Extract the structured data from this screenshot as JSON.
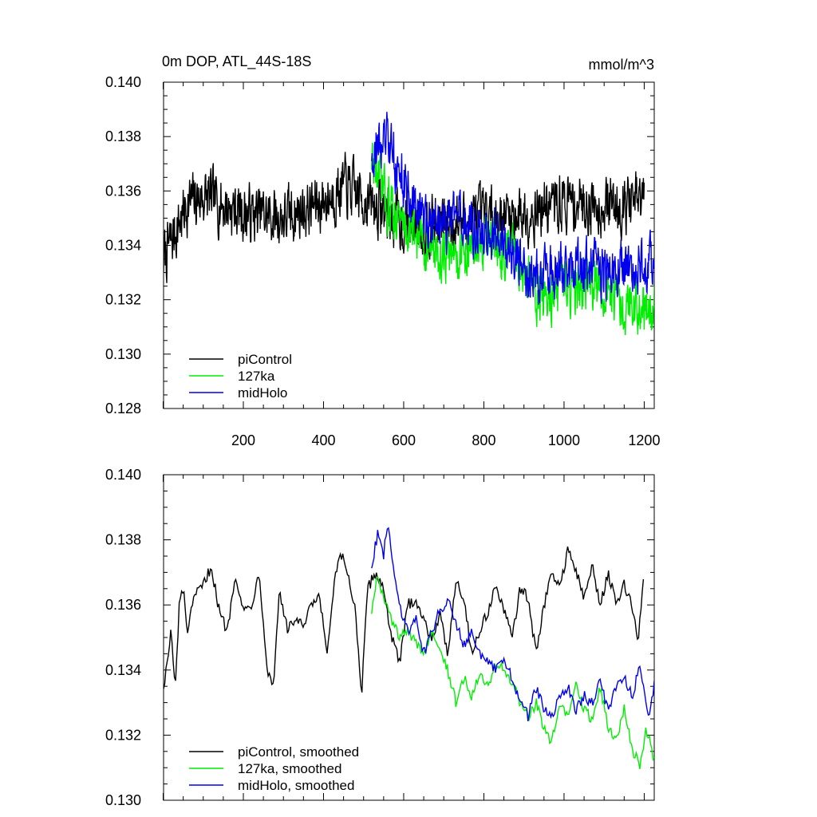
{
  "figure": {
    "title": "0m DOP, ATL_44S-18S",
    "units": "mmol/m^3"
  },
  "colors": {
    "piControl": "#000000",
    "127ka": "#00ee00",
    "midHolo": "#0000ee"
  },
  "chart_data": [
    {
      "type": "line",
      "title": "0m DOP, ATL_44S-18S",
      "units": "mmol/m^3",
      "xlim": [
        1,
        1225
      ],
      "ylim": [
        0.128,
        0.14
      ],
      "x_ticks": [
        200,
        400,
        600,
        800,
        1000,
        1200
      ],
      "x_tick_labels": [
        "200",
        "400",
        "600",
        "800",
        "1000",
        "1200"
      ],
      "y_ticks": [
        0.128,
        0.13,
        0.132,
        0.134,
        0.136,
        0.138,
        0.14
      ],
      "y_tick_labels": [
        "0.128",
        "0.130",
        "0.132",
        "0.134",
        "0.136",
        "0.138",
        "0.140"
      ],
      "legend_position": "bottom-left",
      "smoothed": false,
      "series": [
        {
          "name": "piControl",
          "color_key": "piControl",
          "x_start": 1,
          "x_end": 1200,
          "mean": [
            [
              1,
              0.1335
            ],
            [
              60,
              0.1355
            ],
            [
              100,
              0.1358
            ],
            [
              200,
              0.1352
            ],
            [
              300,
              0.135
            ],
            [
              400,
              0.1356
            ],
            [
              450,
              0.1362
            ],
            [
              500,
              0.1357
            ],
            [
              600,
              0.1348
            ],
            [
              700,
              0.1348
            ],
            [
              800,
              0.135
            ],
            [
              900,
              0.1352
            ],
            [
              1000,
              0.1356
            ],
            [
              1100,
              0.1355
            ],
            [
              1200,
              0.1356
            ]
          ],
          "spread": 0.0015
        },
        {
          "name": "127ka",
          "color_key": "127ka",
          "x_start": 520,
          "x_end": 1225,
          "mean": [
            [
              520,
              0.1372
            ],
            [
              560,
              0.1355
            ],
            [
              620,
              0.1345
            ],
            [
              700,
              0.1335
            ],
            [
              760,
              0.1338
            ],
            [
              820,
              0.134
            ],
            [
              880,
              0.1335
            ],
            [
              940,
              0.132
            ],
            [
              1000,
              0.1322
            ],
            [
              1060,
              0.1325
            ],
            [
              1120,
              0.1322
            ],
            [
              1180,
              0.1318
            ],
            [
              1225,
              0.1318
            ]
          ],
          "spread": 0.0014
        },
        {
          "name": "midHolo",
          "color_key": "midHolo",
          "x_start": 520,
          "x_end": 1225,
          "mean": [
            [
              520,
              0.1375
            ],
            [
              560,
              0.1378
            ],
            [
              620,
              0.1355
            ],
            [
              680,
              0.1348
            ],
            [
              740,
              0.1348
            ],
            [
              800,
              0.1345
            ],
            [
              860,
              0.134
            ],
            [
              920,
              0.1328
            ],
            [
              980,
              0.133
            ],
            [
              1040,
              0.1332
            ],
            [
              1100,
              0.133
            ],
            [
              1160,
              0.1332
            ],
            [
              1225,
              0.1333
            ]
          ],
          "spread": 0.0014
        }
      ]
    },
    {
      "type": "line",
      "xlim": [
        1,
        1225
      ],
      "ylim": [
        0.13,
        0.14
      ],
      "x_ticks": [
        200,
        400,
        600,
        800,
        1000,
        1200
      ],
      "y_ticks": [
        0.13,
        0.132,
        0.134,
        0.136,
        0.138,
        0.14
      ],
      "y_tick_labels": [
        "0.130",
        "0.132",
        "0.134",
        "0.136",
        "0.138",
        "0.140"
      ],
      "legend_position": "bottom-left",
      "smoothed": true,
      "series": [
        {
          "name": "piControl, smoothed",
          "color_key": "piControl",
          "x_start": 1,
          "x_end": 1200,
          "points": [
            [
              1,
              0.1335
            ],
            [
              10,
              0.1342
            ],
            [
              20,
              0.1352
            ],
            [
              30,
              0.1333
            ],
            [
              40,
              0.136
            ],
            [
              50,
              0.1365
            ],
            [
              60,
              0.1352
            ],
            [
              80,
              0.1363
            ],
            [
              100,
              0.1366
            ],
            [
              120,
              0.1372
            ],
            [
              140,
              0.1358
            ],
            [
              160,
              0.1352
            ],
            [
              180,
              0.137
            ],
            [
              200,
              0.1358
            ],
            [
              220,
              0.136
            ],
            [
              240,
              0.137
            ],
            [
              260,
              0.134
            ],
            [
              275,
              0.1335
            ],
            [
              290,
              0.1365
            ],
            [
              310,
              0.1352
            ],
            [
              330,
              0.1356
            ],
            [
              350,
              0.1353
            ],
            [
              370,
              0.136
            ],
            [
              390,
              0.1362
            ],
            [
              410,
              0.1345
            ],
            [
              430,
              0.137
            ],
            [
              445,
              0.1375
            ],
            [
              460,
              0.137
            ],
            [
              480,
              0.1358
            ],
            [
              495,
              0.1332
            ],
            [
              510,
              0.1365
            ],
            [
              530,
              0.137
            ],
            [
              550,
              0.1365
            ],
            [
              570,
              0.135
            ],
            [
              590,
              0.1342
            ],
            [
              610,
              0.136
            ],
            [
              630,
              0.1362
            ],
            [
              650,
              0.1355
            ],
            [
              670,
              0.135
            ],
            [
              690,
              0.1357
            ],
            [
              710,
              0.1345
            ],
            [
              730,
              0.1368
            ],
            [
              750,
              0.1362
            ],
            [
              770,
              0.1345
            ],
            [
              790,
              0.1352
            ],
            [
              810,
              0.1358
            ],
            [
              830,
              0.1366
            ],
            [
              850,
              0.1358
            ],
            [
              870,
              0.135
            ],
            [
              890,
              0.1365
            ],
            [
              910,
              0.1362
            ],
            [
              930,
              0.1345
            ],
            [
              950,
              0.136
            ],
            [
              970,
              0.137
            ],
            [
              990,
              0.1365
            ],
            [
              1010,
              0.1378
            ],
            [
              1030,
              0.137
            ],
            [
              1050,
              0.1362
            ],
            [
              1070,
              0.1372
            ],
            [
              1090,
              0.136
            ],
            [
              1110,
              0.137
            ],
            [
              1130,
              0.136
            ],
            [
              1150,
              0.1366
            ],
            [
              1170,
              0.136
            ],
            [
              1185,
              0.1348
            ],
            [
              1200,
              0.1372
            ]
          ]
        },
        {
          "name": "127ka, smoothed",
          "color_key": "127ka",
          "x_start": 520,
          "x_end": 1225,
          "points": [
            [
              520,
              0.1358
            ],
            [
              535,
              0.137
            ],
            [
              550,
              0.1362
            ],
            [
              570,
              0.1355
            ],
            [
              590,
              0.135
            ],
            [
              610,
              0.1352
            ],
            [
              630,
              0.1348
            ],
            [
              650,
              0.1345
            ],
            [
              670,
              0.1352
            ],
            [
              690,
              0.1348
            ],
            [
              710,
              0.134
            ],
            [
              730,
              0.133
            ],
            [
              750,
              0.1338
            ],
            [
              770,
              0.1332
            ],
            [
              790,
              0.134
            ],
            [
              810,
              0.1335
            ],
            [
              830,
              0.1342
            ],
            [
              850,
              0.134
            ],
            [
              870,
              0.1336
            ],
            [
              890,
              0.133
            ],
            [
              910,
              0.1325
            ],
            [
              930,
              0.133
            ],
            [
              950,
              0.1322
            ],
            [
              970,
              0.1318
            ],
            [
              990,
              0.133
            ],
            [
              1010,
              0.1325
            ],
            [
              1030,
              0.1335
            ],
            [
              1050,
              0.1328
            ],
            [
              1070,
              0.1325
            ],
            [
              1090,
              0.1335
            ],
            [
              1110,
              0.1322
            ],
            [
              1130,
              0.1318
            ],
            [
              1150,
              0.1328
            ],
            [
              1170,
              0.1316
            ],
            [
              1190,
              0.131
            ],
            [
              1205,
              0.1322
            ],
            [
              1225,
              0.1312
            ]
          ]
        },
        {
          "name": "midHolo, smoothed",
          "color_key": "midHolo",
          "x_start": 520,
          "x_end": 1225,
          "points": [
            [
              520,
              0.1372
            ],
            [
              535,
              0.1382
            ],
            [
              550,
              0.1375
            ],
            [
              560,
              0.1386
            ],
            [
              575,
              0.137
            ],
            [
              590,
              0.136
            ],
            [
              610,
              0.1352
            ],
            [
              630,
              0.1356
            ],
            [
              650,
              0.1345
            ],
            [
              670,
              0.1352
            ],
            [
              690,
              0.1358
            ],
            [
              710,
              0.1362
            ],
            [
              730,
              0.1355
            ],
            [
              750,
              0.1348
            ],
            [
              770,
              0.1352
            ],
            [
              790,
              0.1345
            ],
            [
              810,
              0.1342
            ],
            [
              830,
              0.134
            ],
            [
              850,
              0.1343
            ],
            [
              870,
              0.1338
            ],
            [
              890,
              0.133
            ],
            [
              910,
              0.1326
            ],
            [
              930,
              0.1335
            ],
            [
              950,
              0.1328
            ],
            [
              970,
              0.1325
            ],
            [
              990,
              0.1332
            ],
            [
              1010,
              0.1335
            ],
            [
              1030,
              0.1328
            ],
            [
              1050,
              0.1332
            ],
            [
              1070,
              0.133
            ],
            [
              1090,
              0.1336
            ],
            [
              1110,
              0.1328
            ],
            [
              1130,
              0.1335
            ],
            [
              1150,
              0.1338
            ],
            [
              1170,
              0.1332
            ],
            [
              1190,
              0.1342
            ],
            [
              1210,
              0.1325
            ],
            [
              1225,
              0.1335
            ]
          ]
        }
      ]
    }
  ]
}
